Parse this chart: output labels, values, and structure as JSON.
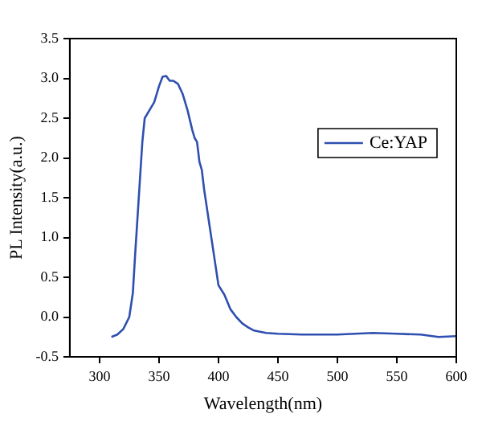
{
  "chart_data": {
    "type": "line",
    "xlabel": "Wavelength(nm)",
    "ylabel": "PL Intensity(a.u.)",
    "xlim": [
      275,
      600
    ],
    "xticks": [
      300,
      350,
      400,
      450,
      500,
      550,
      600
    ],
    "ylim": [
      -0.5,
      3.5
    ],
    "yticks": [
      -0.5,
      {
        "value": 0,
        "label": "0.0"
      },
      0.5,
      {
        "value": 1,
        "label": "1.0"
      },
      1.5,
      {
        "value": 2,
        "label": "2.0"
      },
      2.5,
      {
        "value": 3,
        "label": "3.0"
      },
      3.5
    ],
    "grid": false,
    "legend": "top right",
    "marker": "none",
    "line_style": "solid",
    "x": [
      310,
      315,
      320,
      325,
      328,
      330,
      333,
      336,
      338,
      342,
      346,
      350,
      353,
      356,
      359,
      362,
      366,
      370,
      374,
      378,
      380,
      382,
      384,
      386,
      388,
      390,
      392,
      395,
      398,
      400,
      405,
      410,
      415,
      420,
      425,
      430,
      440,
      450,
      470,
      500,
      530,
      550,
      570,
      585,
      600
    ],
    "series": [
      {
        "name": "Ce:YAP",
        "color": "#2f4fb0",
        "values": [
          -0.25,
          -0.22,
          -0.15,
          0.0,
          0.3,
          0.8,
          1.5,
          2.2,
          2.5,
          2.6,
          2.7,
          2.9,
          3.02,
          3.03,
          2.97,
          2.97,
          2.93,
          2.8,
          2.6,
          2.35,
          2.25,
          2.2,
          1.95,
          1.85,
          1.6,
          1.4,
          1.2,
          0.9,
          0.6,
          0.4,
          0.28,
          0.1,
          0.0,
          -0.08,
          -0.13,
          -0.17,
          -0.2,
          -0.21,
          -0.22,
          -0.22,
          -0.2,
          -0.21,
          -0.22,
          -0.25,
          -0.24
        ]
      }
    ]
  }
}
